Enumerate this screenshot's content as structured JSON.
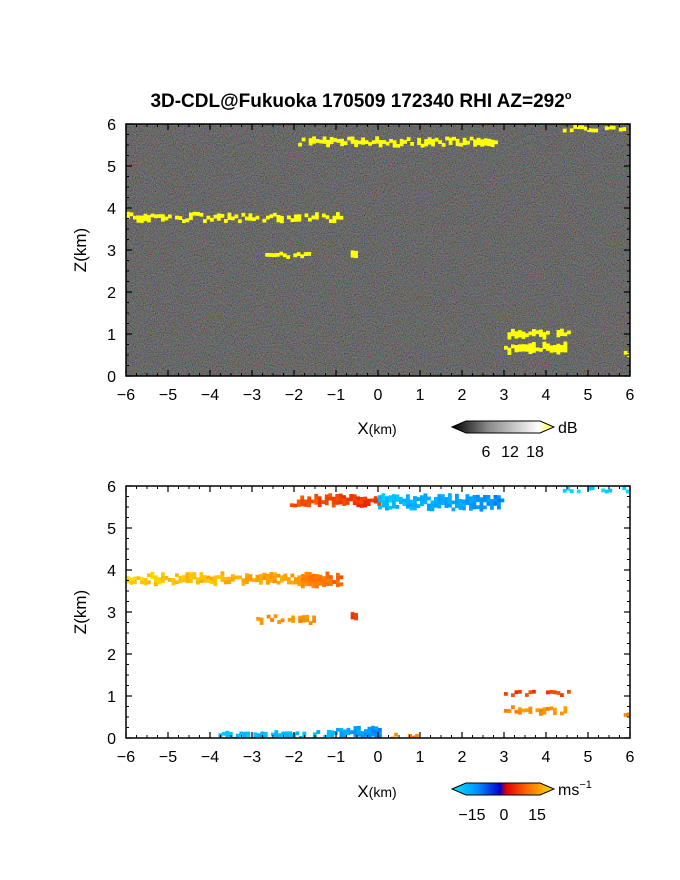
{
  "title": "3D-CDL@Fukuoka 170509 172340 RHI AZ=292",
  "title_sup": "o",
  "chart_data": [
    {
      "type": "heatmap",
      "id": "intensity",
      "xlabel_main": "X",
      "xlabel_unit": "(km)",
      "ylabel": "Z(km)",
      "xlim": [
        -6,
        6
      ],
      "ylim": [
        0,
        6
      ],
      "xticks": [
        "−6",
        "−5",
        "−4",
        "−3",
        "−2",
        "−1",
        "0",
        "1",
        "2",
        "3",
        "4",
        "5",
        "6"
      ],
      "yticks": [
        "0",
        "1",
        "2",
        "3",
        "4",
        "5",
        "6"
      ],
      "background": "noise",
      "colorbar": {
        "label": "dB",
        "tick_labels": [
          "6",
          "12",
          "18"
        ],
        "colors": [
          "#000000",
          "#ffffff",
          "#ffff00"
        ]
      },
      "features": [
        {
          "x": [
            -1.9,
            2.9
          ],
          "z": [
            5.48,
            5.66
          ],
          "color": "#ffff00"
        },
        {
          "x": [
            -6.0,
            -0.8
          ],
          "z": [
            3.7,
            3.86
          ],
          "color": "#ffff00"
        },
        {
          "x": [
            -2.85,
            -1.4
          ],
          "z": [
            2.8,
            2.92
          ],
          "color": "#ffff00"
        },
        {
          "x": [
            -0.65,
            -0.5
          ],
          "z": [
            2.82,
            2.96
          ],
          "color": "#ffff00"
        },
        {
          "x": [
            3.0,
            4.6
          ],
          "z": [
            0.95,
            1.08
          ],
          "color": "#ffff00"
        },
        {
          "x": [
            3.0,
            4.5
          ],
          "z": [
            0.55,
            0.8
          ],
          "color": "#ffff00"
        },
        {
          "x": [
            5.85,
            6.0
          ],
          "z": [
            0.52,
            0.58
          ],
          "color": "#ffff00"
        },
        {
          "x": [
            4.4,
            6.0
          ],
          "z": [
            5.88,
            5.93
          ],
          "color": "#ffff00"
        }
      ]
    },
    {
      "type": "heatmap",
      "id": "velocity",
      "xlabel_main": "X",
      "xlabel_unit": "(km)",
      "ylabel": "Z(km)",
      "xlim": [
        -6,
        6
      ],
      "ylim": [
        0,
        6
      ],
      "xticks": [
        "−6",
        "−5",
        "−4",
        "−3",
        "−2",
        "−1",
        "0",
        "1",
        "2",
        "3",
        "4",
        "5",
        "6"
      ],
      "yticks": [
        "0",
        "1",
        "2",
        "3",
        "4",
        "5",
        "6"
      ],
      "colorbar": {
        "label": "ms",
        "label_sup": "−1",
        "tick_labels": [
          "−15",
          "0",
          "15"
        ],
        "range": [
          -15,
          15
        ]
      },
      "features": [
        {
          "x": [
            -2.1,
            0.1
          ],
          "z": [
            5.5,
            5.78
          ],
          "velocity": [
            6,
            4
          ]
        },
        {
          "x": [
            0.0,
            3.0
          ],
          "z": [
            5.45,
            5.78
          ],
          "velocity": [
            -12,
            -8
          ]
        },
        {
          "x": [
            -6.0,
            -2.0
          ],
          "z": [
            3.66,
            3.92
          ],
          "velocity": [
            14,
            11
          ]
        },
        {
          "x": [
            -2.0,
            -0.8
          ],
          "z": [
            3.6,
            3.92
          ],
          "velocity": [
            10,
            7
          ]
        },
        {
          "x": [
            -2.9,
            -1.5
          ],
          "z": [
            2.75,
            2.9
          ],
          "velocity": [
            10,
            10
          ]
        },
        {
          "x": [
            -0.65,
            -0.5
          ],
          "z": [
            2.8,
            2.98
          ],
          "velocity": [
            5,
            5
          ]
        },
        {
          "x": [
            3.0,
            4.6
          ],
          "z": [
            0.98,
            1.1
          ],
          "velocity": [
            5,
            5
          ]
        },
        {
          "x": [
            3.0,
            4.5
          ],
          "z": [
            0.55,
            0.75
          ],
          "velocity": [
            10,
            10
          ]
        },
        {
          "x": [
            5.85,
            6.0
          ],
          "z": [
            0.5,
            0.58
          ],
          "velocity": [
            10,
            10
          ]
        },
        {
          "x": [
            -3.8,
            -1.0
          ],
          "z": [
            0.0,
            0.15
          ],
          "velocity": [
            -12,
            -11
          ]
        },
        {
          "x": [
            -1.0,
            0.1
          ],
          "z": [
            0.0,
            0.25
          ],
          "velocity": [
            -10,
            -8
          ]
        },
        {
          "x": [
            0.3,
            1.1
          ],
          "z": [
            0.0,
            0.08
          ],
          "velocity": [
            9,
            9
          ]
        },
        {
          "x": [
            4.4,
            6.0
          ],
          "z": [
            5.9,
            5.95
          ],
          "velocity": [
            -14,
            -13
          ]
        }
      ]
    }
  ]
}
